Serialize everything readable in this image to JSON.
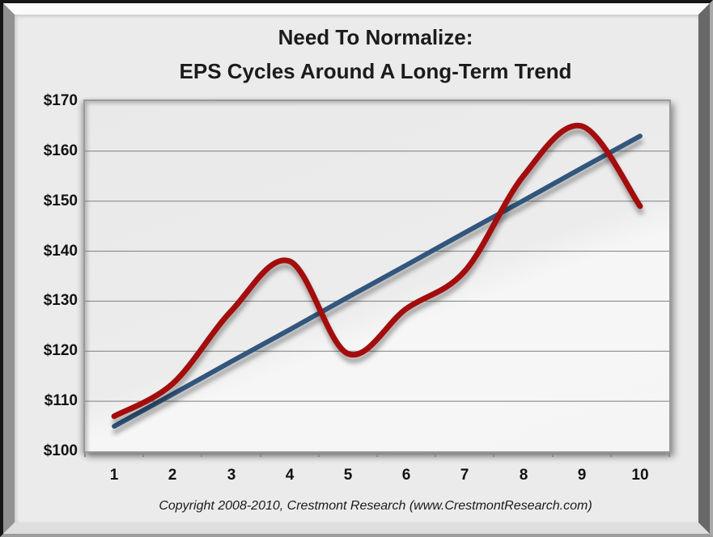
{
  "window": {
    "background": "#ecebeb",
    "frame_style": "beveled-gray-frame"
  },
  "chart": {
    "title_line1": "Need To Normalize:",
    "title_line2": "EPS Cycles Around A Long-Term Trend"
  },
  "chart_data": {
    "type": "line",
    "title": "Need To Normalize: EPS Cycles Around A Long-Term Trend",
    "xlabel": "",
    "ylabel": "",
    "x": [
      1,
      2,
      3,
      4,
      5,
      6,
      7,
      8,
      9,
      10
    ],
    "xtick_labels": [
      "1",
      "2",
      "3",
      "4",
      "5",
      "6",
      "7",
      "8",
      "9",
      "10"
    ],
    "ylim": [
      100,
      170
    ],
    "ytick_step": 10,
    "ytick_values": [
      100,
      110,
      120,
      130,
      140,
      150,
      160,
      170
    ],
    "ytick_labels": [
      "$100",
      "$110",
      "$120",
      "$130",
      "$140",
      "$150",
      "$160",
      "$170"
    ],
    "grid": "horizontal",
    "gridline_color": "#7e7e7e",
    "legend": "none",
    "series": [
      {
        "id": "trend-line",
        "color": "#33567c",
        "stroke_width": 6,
        "smooth": false,
        "values": [
          105,
          111.4,
          117.9,
          124.3,
          130.8,
          137.2,
          143.7,
          150.1,
          156.6,
          163
        ]
      },
      {
        "id": "eps-cycle-line",
        "color": "#a31111",
        "stroke_width": 7,
        "smooth": true,
        "values": [
          107,
          113.5,
          128,
          138,
          119.5,
          128.5,
          136,
          155,
          165,
          149
        ]
      }
    ]
  },
  "footer": {
    "copyright": "Copyright 2008-2010, Crestmont Research (www.CrestmontResearch.com)"
  }
}
